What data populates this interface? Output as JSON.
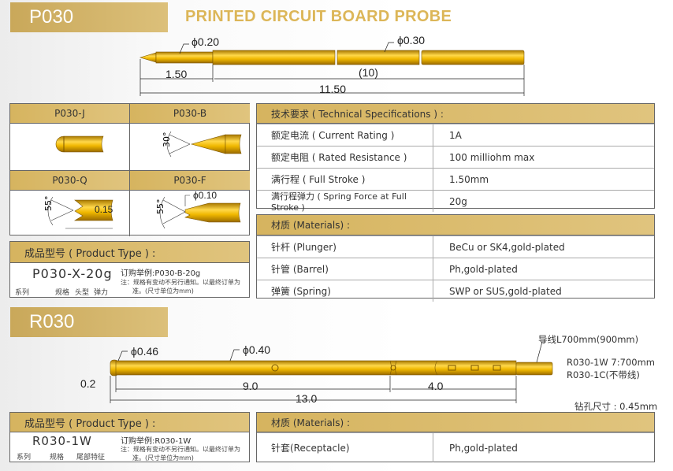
{
  "p030": {
    "banner": "P030",
    "title": "PRINTED CIRCUIT BOARD  PROBE",
    "drawing": {
      "d1": "ϕ0.20",
      "d2": "ϕ0.30",
      "l1": "1.50",
      "l2": "(10)",
      "total": "11.50"
    },
    "heads": [
      {
        "label": "P030-J"
      },
      {
        "label": "P030-B",
        "angle": "30°"
      },
      {
        "label": "P030-Q",
        "angle": "55°",
        "dim": "0.15"
      },
      {
        "label": "P030-F",
        "angle": "55°",
        "dim": "ϕ0.10"
      }
    ],
    "product_type": {
      "header": "成品型号 ( Product Type ) :",
      "code": "P030-X-20g",
      "parts": [
        "系列",
        "规格",
        "头型",
        "弹力"
      ],
      "example": "订购举例:P030-B-20g",
      "note1": "注：规格有变动不另行通知。以最终订单为",
      "note2": "准。(尺寸单位为mm)"
    },
    "specs": {
      "header": "技术要求 ( Technical Specifications ) :",
      "rows": [
        {
          "label": "额定电流 ( Current Rating )",
          "value": "1A"
        },
        {
          "label": "额定电阻 ( Rated Resistance )",
          "value": "100 milliohm max"
        },
        {
          "label": "满行程 ( Full Stroke )",
          "value": "1.50mm"
        },
        {
          "label": "满行程弹力 ( Spring Force at Full Stroke )",
          "value": "20g"
        }
      ]
    },
    "materials": {
      "header": "材质 (Materials) :",
      "rows": [
        {
          "label": "针杆 (Plunger)",
          "value": "BeCu or SK4,gold-plated"
        },
        {
          "label": "针管 (Barrel)",
          "value": "Ph,gold-plated"
        },
        {
          "label": "弹簧 (Spring)",
          "value": "SWP or SUS,gold-plated"
        }
      ]
    }
  },
  "r030": {
    "banner": "R030",
    "drawing": {
      "d1": "ϕ0.46",
      "d2": "ϕ0.40",
      "l0": "0.2",
      "l1": "9.0",
      "l2": "4.0",
      "total": "13.0",
      "wire": "导线L700mm(900mm)",
      "note1": "R030-1W 7:700mm",
      "note2": "R030-1C(不带线)",
      "hole": "钻孔尺寸 : 0.45mm"
    },
    "product_type": {
      "header": "成品型号 ( Product Type ) :",
      "code": "R030-1W",
      "parts": [
        "系列",
        "规格",
        "尾部特征"
      ],
      "example": "订购举例:R030-1W",
      "note1": "注：规格有变动不另行通知。以最终订单为",
      "note2": "准。(尺寸单位为mm)"
    },
    "materials": {
      "header": "材质 (Materials) :",
      "rows": [
        {
          "label": "针套(Receptacle)",
          "value": "Ph,gold-plated"
        }
      ]
    }
  },
  "colors": {
    "gold": "#d6b45f",
    "probe": "#e0a800"
  }
}
